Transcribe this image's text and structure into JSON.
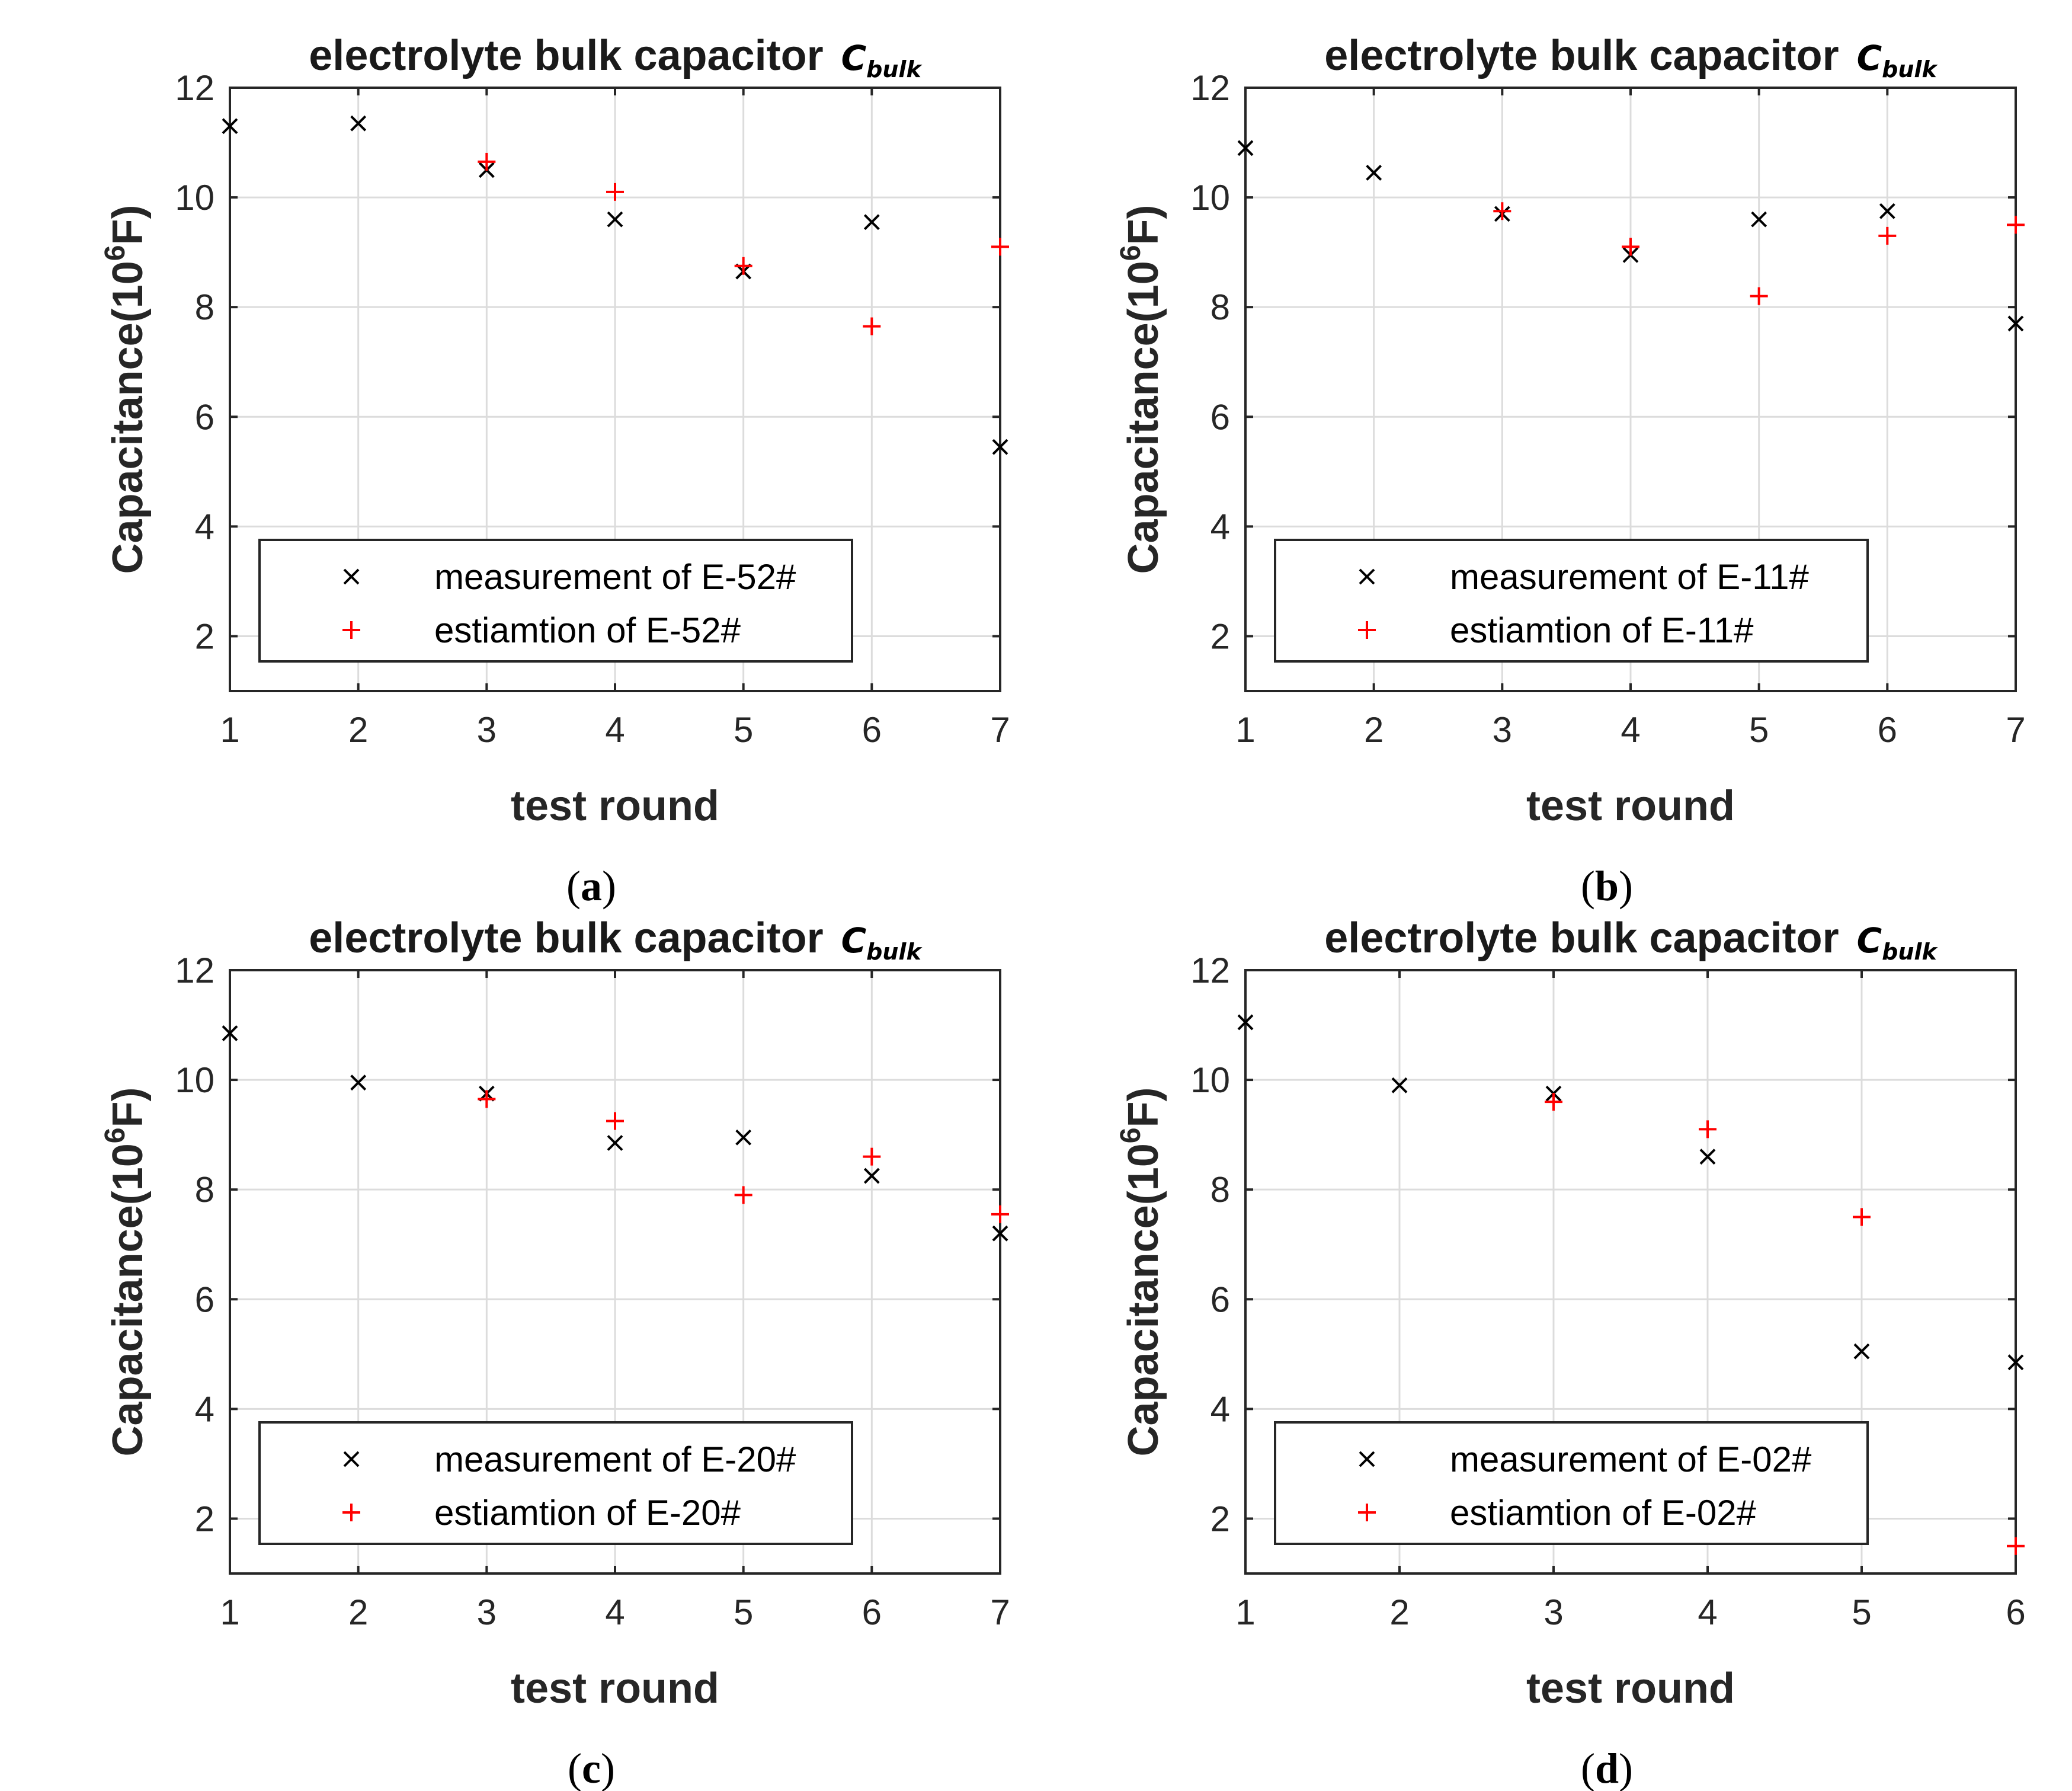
{
  "colors": {
    "measurement": "#000000",
    "estimation": "#ff0000"
  },
  "chart_data": [
    {
      "id": "a",
      "type": "scatter",
      "caption_letter": "a",
      "title": "electrolyte bulk capacitor",
      "title_symbol": "C",
      "title_subscript": "bulk",
      "xlabel": "test round",
      "ylabel_prefix": "Capacitance(10",
      "ylabel_exponent": "6",
      "ylabel_suffix": "F)",
      "xlim": [
        1,
        7
      ],
      "ylim": [
        1,
        12
      ],
      "xticks": [
        1,
        2,
        3,
        4,
        5,
        6,
        7
      ],
      "yticks": [
        2,
        4,
        6,
        8,
        10,
        12
      ],
      "grid": true,
      "legend_position": "bottom-left",
      "series": [
        {
          "name": "measurement of E-52#",
          "marker": "x",
          "x": [
            1,
            2,
            3,
            4,
            5,
            6,
            7
          ],
          "y": [
            11.3,
            11.35,
            10.5,
            9.6,
            8.65,
            9.55,
            5.45
          ]
        },
        {
          "name": "estiamtion of E-52#",
          "marker": "+",
          "x": [
            3,
            4,
            5,
            6,
            7
          ],
          "y": [
            10.65,
            10.1,
            8.75,
            7.65,
            9.1
          ]
        }
      ]
    },
    {
      "id": "b",
      "type": "scatter",
      "caption_letter": "b",
      "title": "electrolyte bulk capacitor",
      "title_symbol": "C",
      "title_subscript": "bulk",
      "xlabel": "test round",
      "ylabel_prefix": "Capacitance(10",
      "ylabel_exponent": "6",
      "ylabel_suffix": "F)",
      "xlim": [
        1,
        7
      ],
      "ylim": [
        1,
        12
      ],
      "xticks": [
        1,
        2,
        3,
        4,
        5,
        6,
        7
      ],
      "yticks": [
        2,
        4,
        6,
        8,
        10,
        12
      ],
      "grid": true,
      "legend_position": "bottom-left",
      "series": [
        {
          "name": "measurement of E-11#",
          "marker": "x",
          "x": [
            1,
            2,
            3,
            4,
            5,
            6,
            7
          ],
          "y": [
            10.9,
            10.45,
            9.7,
            8.95,
            9.6,
            9.75,
            7.7
          ]
        },
        {
          "name": "estiamtion of E-11#",
          "marker": "+",
          "x": [
            3,
            4,
            5,
            6,
            7
          ],
          "y": [
            9.75,
            9.1,
            8.2,
            9.3,
            9.5
          ]
        }
      ]
    },
    {
      "id": "c",
      "type": "scatter",
      "caption_letter": "c",
      "title": "electrolyte bulk capacitor",
      "title_symbol": "C",
      "title_subscript": "bulk",
      "xlabel": "test round",
      "ylabel_prefix": "Capacitance(10",
      "ylabel_exponent": "6",
      "ylabel_suffix": "F)",
      "xlim": [
        1,
        7
      ],
      "ylim": [
        1,
        12
      ],
      "xticks": [
        1,
        2,
        3,
        4,
        5,
        6,
        7
      ],
      "yticks": [
        2,
        4,
        6,
        8,
        10,
        12
      ],
      "grid": true,
      "legend_position": "bottom-left",
      "series": [
        {
          "name": "measurement of E-20#",
          "marker": "x",
          "x": [
            1,
            2,
            3,
            4,
            5,
            6,
            7
          ],
          "y": [
            10.85,
            9.95,
            9.75,
            8.85,
            8.95,
            8.25,
            7.2
          ]
        },
        {
          "name": "estiamtion of E-20#",
          "marker": "+",
          "x": [
            3,
            4,
            5,
            6,
            7
          ],
          "y": [
            9.65,
            9.25,
            7.9,
            8.6,
            7.55
          ]
        }
      ]
    },
    {
      "id": "d",
      "type": "scatter",
      "caption_letter": "d",
      "title": "electrolyte bulk capacitor",
      "title_symbol": "C",
      "title_subscript": "bulk",
      "xlabel": "test round",
      "ylabel_prefix": "Capacitance(10",
      "ylabel_exponent": "6",
      "ylabel_suffix": "F)",
      "xlim": [
        1,
        6
      ],
      "ylim": [
        1,
        12
      ],
      "xticks": [
        1,
        2,
        3,
        4,
        5,
        6
      ],
      "yticks": [
        2,
        4,
        6,
        8,
        10,
        12
      ],
      "grid": true,
      "legend_position": "bottom-left",
      "series": [
        {
          "name": "measurement of E-02#",
          "marker": "x",
          "x": [
            1,
            2,
            3,
            4,
            5,
            6
          ],
          "y": [
            11.05,
            9.9,
            9.75,
            8.6,
            5.05,
            4.85
          ]
        },
        {
          "name": "estiamtion of E-02#",
          "marker": "+",
          "x": [
            3,
            4,
            5,
            6
          ],
          "y": [
            9.6,
            9.1,
            7.5,
            1.5
          ]
        }
      ]
    }
  ]
}
